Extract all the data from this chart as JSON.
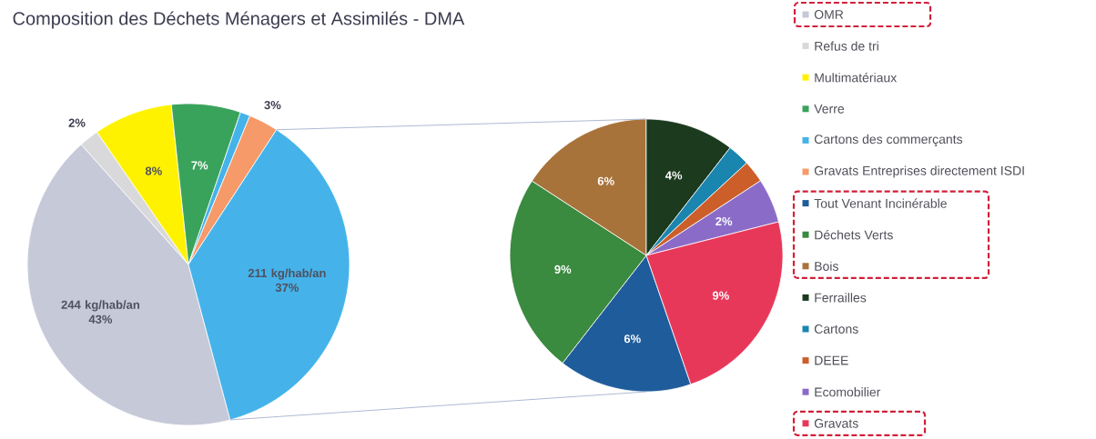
{
  "chart_data": [
    {
      "type": "pie",
      "title": "Composition des Déchets Ménagers et Assimilés - DMA",
      "categories": [
        "OMR",
        "Refus de tri",
        "Multimatériaux",
        "Verre",
        "Cartons des commerçants",
        "Gravats Entreprises directement ISDI",
        null
      ],
      "values": [
        43,
        2,
        8,
        7,
        1,
        3,
        37
      ],
      "value_labels": [
        "244 kg/hab/an 43%",
        "2%",
        "8%",
        "7%",
        null,
        "3%",
        "211 kg/hab/an 37%"
      ],
      "colors": [
        "#c6c9d8",
        "#d9d9dc",
        "#fff200",
        "#3aa35b",
        "#45b3ea",
        "#f59a68",
        "#45b3ea"
      ],
      "legend": "right"
    },
    {
      "type": "pie",
      "categories": [
        "Tout Venant Incinérable",
        "Déchets Verts",
        "Bois",
        "Ferrailles",
        "Cartons",
        "DEEE",
        "Ecomobilier",
        "Gravats"
      ],
      "values": [
        6,
        9,
        6,
        4,
        1,
        1,
        2,
        9
      ],
      "value_labels": [
        "6%",
        "9%",
        "6%",
        "4%",
        null,
        null,
        "2%",
        "9%"
      ],
      "colors": [
        "#1f5c9c",
        "#3a8a3f",
        "#a8733a",
        "#1c3a1e",
        "#1a86b0",
        "#cc5e2a",
        "#8a6cc8",
        "#e8385a"
      ],
      "legend": "right"
    }
  ]
}
